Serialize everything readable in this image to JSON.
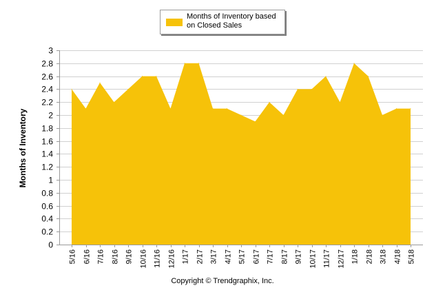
{
  "chart_data": {
    "type": "area",
    "title": "",
    "xlabel": "",
    "ylabel": "Months of Inventory",
    "ylim": [
      0,
      3
    ],
    "ytick_step": 0.2,
    "grid": true,
    "legend_position": "top-center",
    "categories": [
      "5/16",
      "6/16",
      "7/16",
      "8/16",
      "9/16",
      "10/16",
      "11/16",
      "12/16",
      "1/17",
      "2/17",
      "3/17",
      "4/17",
      "5/17",
      "6/17",
      "7/17",
      "8/17",
      "9/17",
      "10/17",
      "11/17",
      "12/17",
      "1/18",
      "2/18",
      "3/18",
      "4/18",
      "5/18"
    ],
    "series": [
      {
        "name": "Months of Inventory based on Closed Sales",
        "color": "#F6C209",
        "values": [
          2.4,
          2.1,
          2.5,
          2.2,
          2.4,
          2.6,
          2.6,
          2.1,
          2.8,
          2.8,
          2.1,
          2.1,
          2.0,
          1.9,
          2.2,
          2.0,
          2.4,
          2.4,
          2.6,
          2.2,
          2.8,
          2.6,
          2.0,
          2.1,
          2.1
        ]
      }
    ]
  },
  "legend": {
    "label": "Months of Inventory based on Closed Sales"
  },
  "footer": {
    "copyright": "Copyright © Trendgraphix, Inc."
  }
}
